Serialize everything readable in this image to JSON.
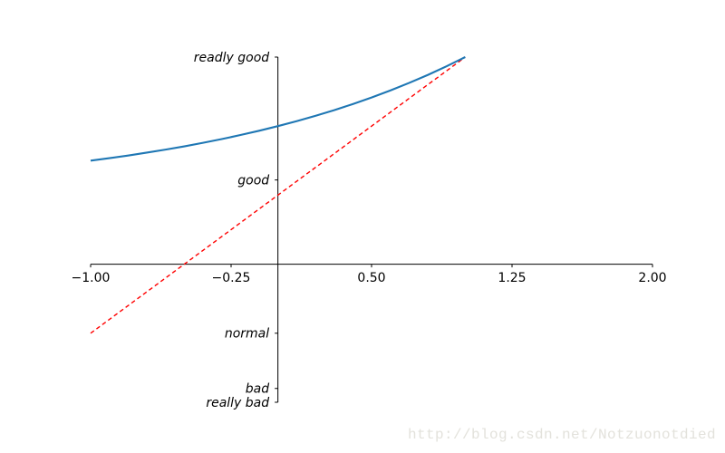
{
  "figure": {
    "background": "#ffffff",
    "watermark": {
      "text": "http://blog.csdn.net/Notzuonotdied",
      "color": "#e3e2dc"
    }
  },
  "chart_data": {
    "type": "line",
    "title": "",
    "xlabel": "",
    "ylabel": "",
    "grid": false,
    "legend": null,
    "xlim": [
      -1,
      2
    ],
    "ylim": [
      -2,
      3
    ],
    "axes": {
      "spine_color": "#000000",
      "x_spine_at_data_y": 0,
      "y_spine_at_data_x": 0,
      "tick_length": 3.5
    },
    "xticks": {
      "values": [
        -1.0,
        -0.25,
        0.5,
        1.25,
        2.0
      ],
      "labels": [
        "−1.00",
        "−0.25",
        "0.50",
        "1.25",
        "2.00"
      ]
    },
    "yticks": {
      "values": [
        -2,
        -1.8,
        -1,
        1.22,
        3
      ],
      "labels": [
        "really bad",
        "bad",
        "normal",
        "good",
        "readly good"
      ]
    },
    "series": [
      {
        "name": "red dashed line (y = 2x + 1)",
        "color": "#ff0000",
        "width": 1.4,
        "dash": "4.7 3.3",
        "x": [
          -1,
          1
        ],
        "y": [
          -1,
          3
        ]
      },
      {
        "name": "blue solid curve (y = 2^x + 1)",
        "color": "#1f77b4",
        "width": 2.1,
        "dash": null,
        "x": [
          -1.0,
          -0.9,
          -0.8,
          -0.7,
          -0.6,
          -0.5,
          -0.4,
          -0.3,
          -0.2,
          -0.1,
          0.0,
          0.1,
          0.2,
          0.3,
          0.4,
          0.5,
          0.6,
          0.7,
          0.8,
          0.9,
          1.0
        ],
        "y": [
          1.5,
          1.536,
          1.574,
          1.616,
          1.66,
          1.707,
          1.758,
          1.812,
          1.871,
          1.933,
          2.0,
          2.072,
          2.149,
          2.231,
          2.32,
          2.414,
          2.516,
          2.625,
          2.741,
          2.866,
          3.0
        ]
      }
    ]
  }
}
